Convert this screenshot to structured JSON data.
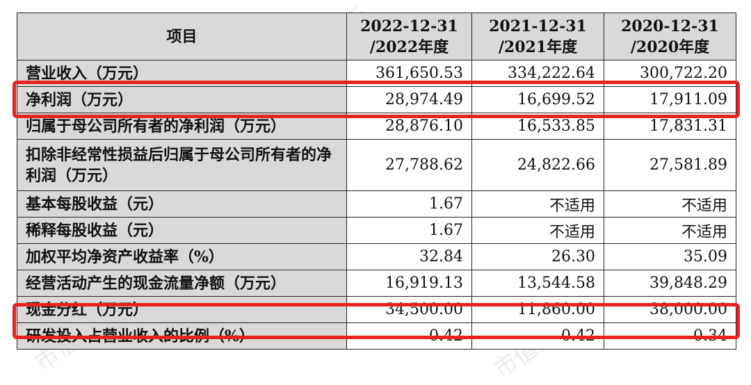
{
  "table": {
    "header": {
      "item": "项目",
      "cols": [
        {
          "line1": "2022-12-31",
          "line2": "/2022年度"
        },
        {
          "line1": "2021-12-31",
          "line2": "/2021年度"
        },
        {
          "line1": "2020-12-31",
          "line2": "/2020年度"
        }
      ]
    },
    "rows": [
      {
        "label": "营业收入（万元）",
        "values": [
          "361,650.53",
          "334,222.64",
          "300,722.20"
        ]
      },
      {
        "label": "净利润（万元）",
        "values": [
          "28,974.49",
          "16,699.52",
          "17,911.09"
        ]
      },
      {
        "label": "归属于母公司所有者的净利润（万元）",
        "values": [
          "28,876.10",
          "16,533.85",
          "17,831.31"
        ]
      },
      {
        "label": "扣除非经常性损益后归属于母公司所有者的净利润（万元）",
        "values": [
          "27,788.62",
          "24,822.66",
          "27,581.89"
        ]
      },
      {
        "label": "基本每股收益（元）",
        "values": [
          "1.67",
          "不适用",
          "不适用"
        ]
      },
      {
        "label": "稀释每股收益（元）",
        "values": [
          "1.67",
          "不适用",
          "不适用"
        ]
      },
      {
        "label": "加权平均净资产收益率（%）",
        "values": [
          "32.84",
          "26.30",
          "35.09"
        ]
      },
      {
        "label": "经营活动产生的现金流量净额（万元）",
        "values": [
          "16,919.13",
          "13,544.58",
          "39,848.29"
        ]
      },
      {
        "label": "现金分红（万元）",
        "values": [
          "34,500.00",
          "11,860.00",
          "38,000.00"
        ]
      },
      {
        "label": "研发投入占营业收入的比例（%）",
        "values": [
          "0.42",
          "0.42",
          "0.34"
        ]
      }
    ]
  },
  "highlight_color": "#e8231f",
  "watermark_text": "市值风云"
}
